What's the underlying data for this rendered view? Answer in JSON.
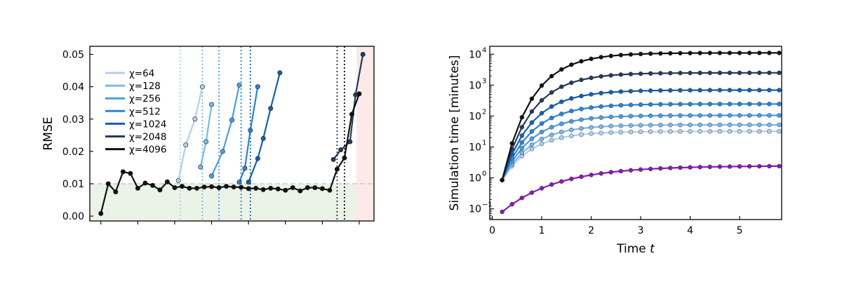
{
  "chart_data": [
    {
      "type": "line",
      "ylabel": "RMSE",
      "xlabel": "",
      "ylim": [
        -0.0015,
        0.0525
      ],
      "xlim": [
        -0.6,
        14.8
      ],
      "yticks": [
        0.0,
        0.01,
        0.02,
        0.03,
        0.04,
        0.05
      ],
      "ytick_labels": [
        "0.00",
        "0.01",
        "0.02",
        "0.03",
        "0.04",
        "0.05"
      ],
      "threshold": 0.01,
      "regions": [
        {
          "from": -0.6,
          "to": 13.85,
          "y_max": 0.01,
          "color": "#eaf3e5"
        },
        {
          "from": 13.85,
          "to": 14.8,
          "y_max": 0.0525,
          "color": "#fde9e9"
        }
      ],
      "legend_position": "upper-left",
      "series": [
        {
          "name": "χ=64",
          "color": "#b0d0ee",
          "cutoff": 4.3,
          "x": [
            4.2,
            4.6,
            5.1,
            5.5
          ],
          "y": [
            0.011,
            0.022,
            0.03,
            0.04
          ]
        },
        {
          "name": "χ=128",
          "color": "#7db8ea",
          "cutoff": 5.5,
          "x": [
            5.4,
            5.7,
            6.0
          ],
          "y": [
            0.0152,
            0.023,
            0.0345
          ]
        },
        {
          "name": "χ=256",
          "color": "#4a9ee3",
          "cutoff": 6.4,
          "x": [
            6.0,
            6.6,
            7.1,
            7.5
          ],
          "y": [
            0.0124,
            0.02,
            0.0297,
            0.0405
          ]
        },
        {
          "name": "χ=512",
          "color": "#2a84d6",
          "cutoff": 7.6,
          "x": [
            7.5,
            7.8,
            8.1,
            8.5
          ],
          "y": [
            0.0105,
            0.0148,
            0.0265,
            0.04
          ]
        },
        {
          "name": "χ=1024",
          "color": "#1560a8",
          "cutoff": 8.1,
          "x": [
            8.0,
            8.5,
            8.8,
            9.2,
            9.7
          ],
          "y": [
            0.0105,
            0.0178,
            0.024,
            0.0333,
            0.0443
          ]
        },
        {
          "name": "χ=2048",
          "color": "#243a5e",
          "cutoff": 12.8,
          "x": [
            12.6,
            13.0,
            13.5,
            13.8,
            14.2
          ],
          "y": [
            0.0175,
            0.0205,
            0.023,
            0.0375,
            0.05
          ]
        },
        {
          "name": "χ=4096",
          "color": "#111111",
          "cutoff": 13.2,
          "x": [
            0.0,
            0.4,
            0.8,
            1.2,
            1.6,
            2.0,
            2.4,
            2.8,
            3.2,
            3.6,
            4.0,
            4.4,
            4.8,
            5.2,
            5.6,
            6.0,
            6.4,
            6.8,
            7.2,
            7.6,
            8.0,
            8.4,
            8.8,
            9.2,
            9.6,
            10.0,
            10.4,
            10.8,
            11.2,
            11.6,
            12.0,
            12.4,
            12.8,
            13.2,
            13.6,
            14.0
          ],
          "y": [
            0.0008,
            0.01,
            0.0075,
            0.0137,
            0.0132,
            0.0086,
            0.0102,
            0.0095,
            0.0081,
            0.0106,
            0.0088,
            0.0092,
            0.0086,
            0.0086,
            0.009,
            0.0091,
            0.0088,
            0.0092,
            0.009,
            0.0089,
            0.0085,
            0.0086,
            0.0082,
            0.0086,
            0.0084,
            0.008,
            0.0088,
            0.0078,
            0.0088,
            0.0088,
            0.0085,
            0.008,
            0.0145,
            0.018,
            0.0315,
            0.0378
          ]
        }
      ]
    },
    {
      "type": "line",
      "xlabel": "Time t",
      "ylabel": "Simulation time [minutes]",
      "yscale": "log",
      "xlim": [
        -0.05,
        5.85
      ],
      "ylim": [
        0.045,
        18000
      ],
      "xticks": [
        0,
        1,
        2,
        3,
        4,
        5
      ],
      "yticks_exponents": [
        -1,
        0,
        1,
        2,
        3,
        4
      ],
      "series": [
        {
          "color": "#8a1ab5",
          "start": 0.08,
          "end": 2.4,
          "k": 0.9
        },
        {
          "color": "#b0d0ee",
          "start": 0.85,
          "end": 32,
          "k": 1.7
        },
        {
          "color": "#7db8ea",
          "start": 0.85,
          "end": 52,
          "k": 1.7
        },
        {
          "color": "#4a9ee3",
          "start": 0.85,
          "end": 105,
          "k": 1.7
        },
        {
          "color": "#2a84d6",
          "start": 0.85,
          "end": 245,
          "k": 1.7
        },
        {
          "color": "#1560a8",
          "start": 0.85,
          "end": 690,
          "k": 1.7
        },
        {
          "color": "#243a5e",
          "start": 0.85,
          "end": 2500,
          "k": 1.7
        },
        {
          "color": "#111111",
          "start": 0.85,
          "end": 11000,
          "k": 1.7
        }
      ]
    }
  ]
}
